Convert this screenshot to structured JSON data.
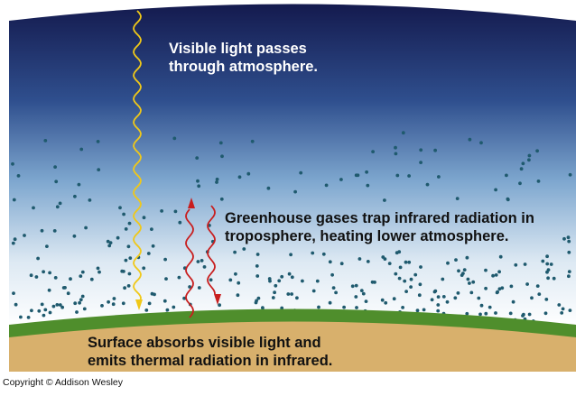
{
  "labels": {
    "visible_light": [
      "Visible light passes",
      "through atmosphere."
    ],
    "greenhouse": [
      "Greenhouse gases trap infrared radiation in",
      "troposphere, heating lower atmosphere."
    ],
    "surface": [
      "Surface absorbs visible light and",
      "emits thermal radiation in infrared."
    ]
  },
  "copyright": "Copyright © Addison Wesley",
  "colors": {
    "sky_top": "#141a4e",
    "sky_mid": "#4a7ab4",
    "sky_low": "#ffffff",
    "ground": "#d8b06c",
    "grass": "#4f8e2c",
    "sunlight": "#f0c818",
    "infrared": "#c81e1e",
    "molecule": "#1f5a6e",
    "text_light": "#ffffff",
    "text_dark": "#111111"
  },
  "icons": {
    "sunlight_ray": "yellow-wavy-arrow-icon",
    "infrared_ray": "red-wavy-arrow-icon",
    "gas_molecule": "dot-icon"
  }
}
